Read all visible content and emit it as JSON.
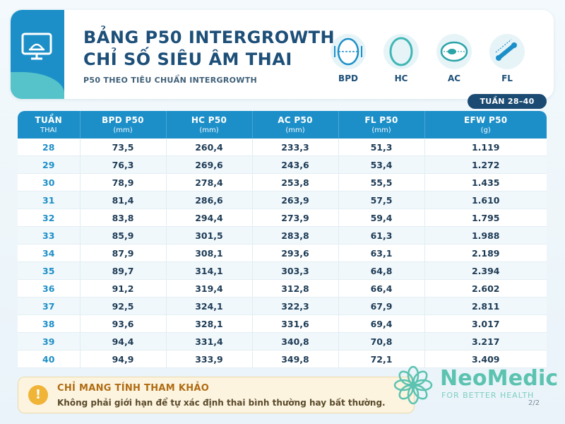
{
  "header": {
    "title_line1": "BẢNG P50 INTERGROWTH",
    "title_line2": "CHỈ SỐ SIÊU ÂM THAI",
    "subtitle": "P50 THEO TIÊU CHUẨN INTERGROWTH",
    "icon": "monitor-ultrasound-icon",
    "measures": [
      {
        "label": "BPD",
        "icon": "bpd-head-icon"
      },
      {
        "label": "HC",
        "icon": "hc-head-circumference-icon"
      },
      {
        "label": "AC",
        "icon": "ac-abdomen-icon"
      },
      {
        "label": "FL",
        "icon": "fl-femur-icon"
      }
    ]
  },
  "week_badge": "TUẦN 28–40",
  "table": {
    "columns": [
      {
        "title": "TUẦN",
        "unit": "THAI"
      },
      {
        "title": "BPD P50",
        "unit": "(mm)"
      },
      {
        "title": "HC P50",
        "unit": "(mm)"
      },
      {
        "title": "AC P50",
        "unit": "(mm)"
      },
      {
        "title": "FL P50",
        "unit": "(mm)"
      },
      {
        "title": "EFW P50",
        "unit": "(g)"
      }
    ],
    "rows": [
      [
        "28",
        "73,5",
        "260,4",
        "233,3",
        "51,3",
        "1.119"
      ],
      [
        "29",
        "76,3",
        "269,6",
        "243,6",
        "53,4",
        "1.272"
      ],
      [
        "30",
        "78,9",
        "278,4",
        "253,8",
        "55,5",
        "1.435"
      ],
      [
        "31",
        "81,4",
        "286,6",
        "263,9",
        "57,5",
        "1.610"
      ],
      [
        "32",
        "83,8",
        "294,4",
        "273,9",
        "59,4",
        "1.795"
      ],
      [
        "33",
        "85,9",
        "301,5",
        "283,8",
        "61,3",
        "1.988"
      ],
      [
        "34",
        "87,9",
        "308,1",
        "293,6",
        "63,1",
        "2.189"
      ],
      [
        "35",
        "89,7",
        "314,1",
        "303,3",
        "64,8",
        "2.394"
      ],
      [
        "36",
        "91,2",
        "319,4",
        "312,8",
        "66,4",
        "2.602"
      ],
      [
        "37",
        "92,5",
        "324,1",
        "322,3",
        "67,9",
        "2.811"
      ],
      [
        "38",
        "93,6",
        "328,1",
        "331,6",
        "69,4",
        "3.017"
      ],
      [
        "39",
        "94,4",
        "331,4",
        "340,8",
        "70,8",
        "3.217"
      ],
      [
        "40",
        "94,9",
        "333,9",
        "349,8",
        "72,1",
        "3.409"
      ]
    ]
  },
  "note": {
    "icon_text": "!",
    "title": "CHỈ MANG TÍNH THAM KHẢO",
    "text": "Không phải giới hạn để tự xác định thai bình thường hay bất thường."
  },
  "logo": {
    "name": "NeoMedic",
    "tagline": "FOR BETTER HEALTH",
    "icon": "flower-logo-icon"
  },
  "page_number": "2/2",
  "colors": {
    "primary": "#1d8fc8",
    "navy": "#1b4a72",
    "teal": "#55c3c9",
    "logo_green": "#5cc3b0",
    "note_bg": "#fdf4e0",
    "note_accent": "#f0b437"
  }
}
